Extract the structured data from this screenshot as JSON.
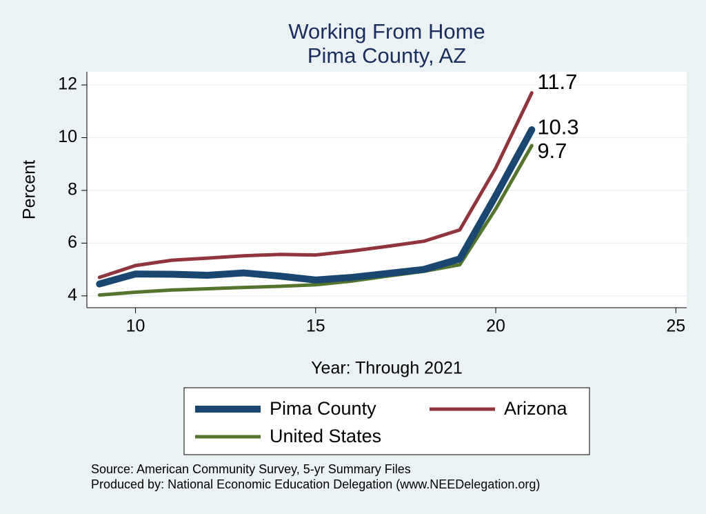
{
  "chart_data": {
    "type": "line",
    "title": [
      "Working From Home",
      "Pima County, AZ"
    ],
    "x_label": "Year: Through 2021",
    "y_label": "Percent",
    "x": [
      9,
      10,
      11,
      12,
      13,
      14,
      15,
      16,
      17,
      18,
      19,
      20,
      21
    ],
    "series": [
      {
        "name": "Pima County",
        "color": "#1a476f",
        "values": [
          4.45,
          4.83,
          4.82,
          4.78,
          4.87,
          4.75,
          4.6,
          4.7,
          4.85,
          5.0,
          5.4,
          7.8,
          10.3
        ]
      },
      {
        "name": "Arizona",
        "color": "#90353b",
        "values": [
          4.7,
          5.15,
          5.35,
          5.43,
          5.52,
          5.57,
          5.55,
          5.7,
          5.88,
          6.07,
          6.5,
          8.85,
          11.7
        ]
      },
      {
        "name": "United States",
        "color": "#55752f",
        "values": [
          4.03,
          4.14,
          4.22,
          4.27,
          4.32,
          4.36,
          4.42,
          4.56,
          4.75,
          4.93,
          5.18,
          7.3,
          9.7
        ]
      }
    ],
    "xlim": [
      8.65,
      25.3
    ],
    "xticks": [
      10,
      15,
      20,
      25
    ],
    "ylim": [
      3.55,
      12.5
    ],
    "yticks": [
      4,
      6,
      8,
      10,
      12
    ],
    "grid": true,
    "notes": [
      "Source: American Community Survey, 5-yr Summary Files",
      "Produced by: National Economic Education Delegation (www.NEEDelegation.org)"
    ]
  }
}
